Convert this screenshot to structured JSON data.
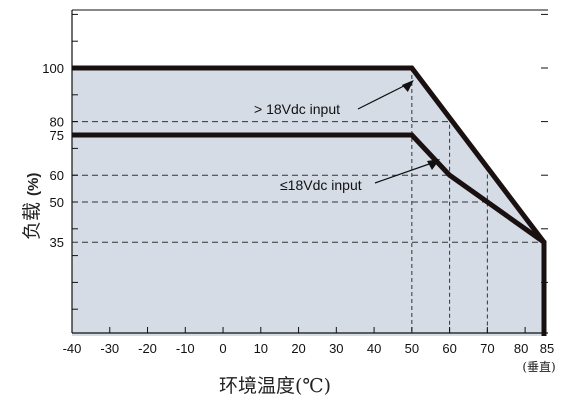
{
  "chart_data": {
    "type": "line",
    "xlabel": "环境温度(℃)",
    "ylabel_cn": "负载",
    "ylabel_unit": "(%)",
    "x_note": "(垂直)",
    "x_ticks": [
      -40,
      -30,
      -20,
      -10,
      0,
      10,
      20,
      30,
      40,
      50,
      60,
      70,
      80,
      85
    ],
    "y_ticks": [
      35,
      50,
      60,
      75,
      80,
      100
    ],
    "xlim": [
      -40,
      88
    ],
    "ylim": [
      0,
      120
    ],
    "shaded_region": true,
    "grid": "dashed reference lines",
    "series": [
      {
        "name": "> 18Vdc input",
        "x": [
          -40,
          50,
          85,
          85
        ],
        "y": [
          100,
          100,
          35,
          0
        ]
      },
      {
        "name": "≤18Vdc input",
        "x": [
          -40,
          50,
          60,
          85,
          85
        ],
        "y": [
          75,
          75,
          60,
          35,
          0
        ]
      }
    ],
    "reference_lines": {
      "horizontal": [
        80,
        75,
        60,
        50,
        35
      ],
      "vertical": [
        50,
        60,
        70
      ]
    },
    "annotations": [
      {
        "text": "> 18Vdc input",
        "points_to": {
          "x": 50,
          "y": 100
        }
      },
      {
        "text": "≤18Vdc input",
        "points_to": {
          "x": 57,
          "y": 67
        }
      }
    ]
  },
  "colors": {
    "shade": "#d5dce6",
    "curve": "#1a1010",
    "axis": "#111111",
    "dashed": "#333333"
  }
}
